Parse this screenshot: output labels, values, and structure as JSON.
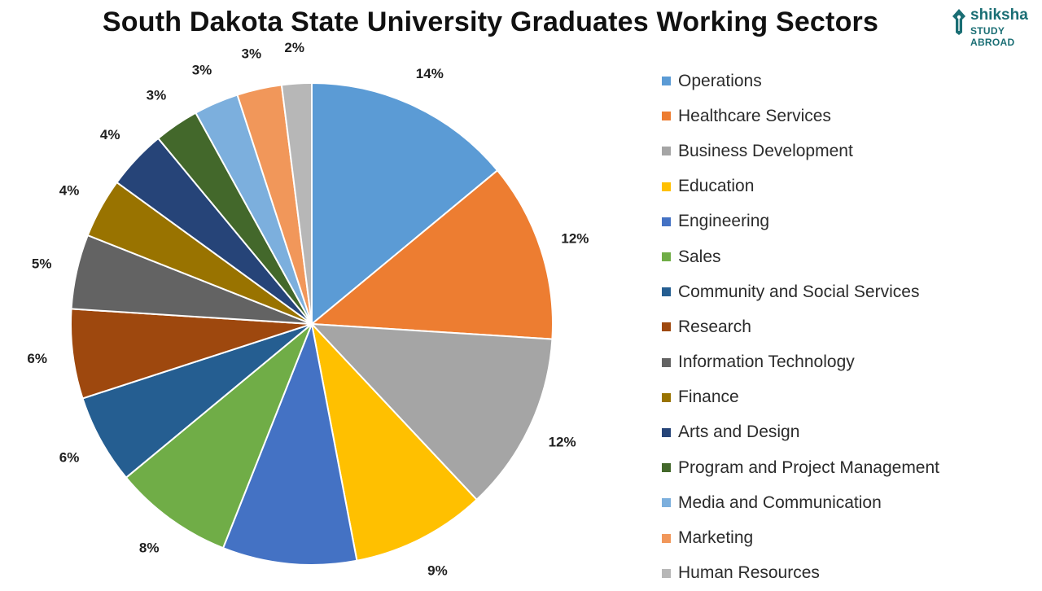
{
  "chart_data": {
    "type": "pie",
    "title": "South Dakota State University Graduates Working Sectors",
    "slices": [
      {
        "label": "Operations",
        "value": 14,
        "display": "14%",
        "color": "#5b9bd5"
      },
      {
        "label": "Healthcare Services",
        "value": 12,
        "display": "12%",
        "color": "#ed7d31"
      },
      {
        "label": "Business Development",
        "value": 12,
        "display": "12%",
        "color": "#a5a5a5"
      },
      {
        "label": "Education",
        "value": 9,
        "display": "9%",
        "color": "#ffc000"
      },
      {
        "label": "Engineering",
        "value": 9,
        "display": "9%",
        "color": "#4472c4"
      },
      {
        "label": "Sales",
        "value": 8,
        "display": "8%",
        "color": "#70ad47"
      },
      {
        "label": "Community and Social Services",
        "value": 6,
        "display": "6%",
        "color": "#255e91"
      },
      {
        "label": "Research",
        "value": 6,
        "display": "6%",
        "color": "#9e480e"
      },
      {
        "label": "Information Technology",
        "value": 5,
        "display": "5%",
        "color": "#636363"
      },
      {
        "label": "Finance",
        "value": 4,
        "display": "4%",
        "color": "#997300"
      },
      {
        "label": "Arts and Design",
        "value": 4,
        "display": "4%",
        "color": "#264478"
      },
      {
        "label": "Program and Project Management",
        "value": 3,
        "display": "3%",
        "color": "#43682b"
      },
      {
        "label": "Media and Communication",
        "value": 3,
        "display": "3%",
        "color": "#7cafdd"
      },
      {
        "label": "Marketing",
        "value": 3,
        "display": "3%",
        "color": "#f1975a"
      },
      {
        "label": "Human Resources",
        "value": 2,
        "display": "2%",
        "color": "#b7b7b7"
      }
    ],
    "legend_position": "right"
  },
  "logo": {
    "brand": "shiksha",
    "subtitle": "STUDY ABROAD",
    "color": "#1a6e74"
  }
}
